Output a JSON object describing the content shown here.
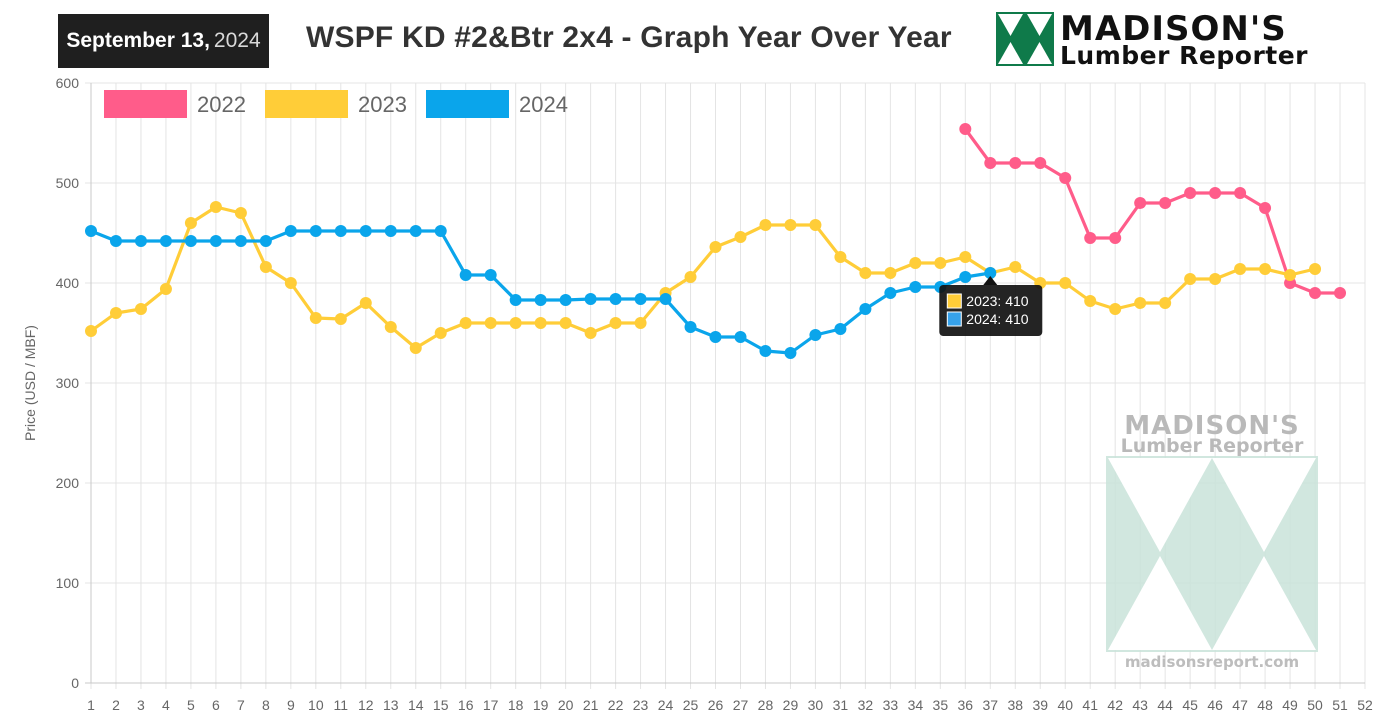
{
  "header": {
    "date_main": "September 13,",
    "date_year": "2024",
    "title": "WSPF KD #2&Btr 2x4 - Graph Year Over Year",
    "logo_line1": "MADISON'S",
    "logo_line2": "Lumber Reporter"
  },
  "watermark": {
    "line1": "MADISON'S",
    "line2": "Lumber Reporter",
    "url": "madisonsreport.com"
  },
  "tooltip": {
    "x": 37,
    "items": [
      {
        "label": "2023: 410",
        "color": "#ffcd38"
      },
      {
        "label": "2024: 410",
        "color": "#36a2eb"
      }
    ]
  },
  "chart_data": {
    "type": "line",
    "title": "",
    "xlabel": "",
    "ylabel": "Price (USD / MBF)",
    "x": [
      1,
      2,
      3,
      4,
      5,
      6,
      7,
      8,
      9,
      10,
      11,
      12,
      13,
      14,
      15,
      16,
      17,
      18,
      19,
      20,
      21,
      22,
      23,
      24,
      25,
      26,
      27,
      28,
      29,
      30,
      31,
      32,
      33,
      34,
      35,
      36,
      37,
      38,
      39,
      40,
      41,
      42,
      43,
      44,
      45,
      46,
      47,
      48,
      49,
      50,
      51,
      52
    ],
    "ylim": [
      0,
      600
    ],
    "yticks": [
      0,
      100,
      200,
      300,
      400,
      500,
      600
    ],
    "grid": true,
    "legend_position": "top-left",
    "series": [
      {
        "name": "2022",
        "color": "#ff5c8a",
        "points": [
          [
            36,
            554
          ],
          [
            37,
            520
          ],
          [
            38,
            520
          ],
          [
            39,
            520
          ],
          [
            40,
            505
          ],
          [
            41,
            445
          ],
          [
            42,
            445
          ],
          [
            43,
            480
          ],
          [
            44,
            480
          ],
          [
            45,
            490
          ],
          [
            46,
            490
          ],
          [
            47,
            490
          ],
          [
            48,
            475
          ],
          [
            49,
            400
          ],
          [
            50,
            390
          ],
          [
            51,
            390
          ]
        ]
      },
      {
        "name": "2023",
        "color": "#ffcd38",
        "points": [
          [
            1,
            352
          ],
          [
            2,
            370
          ],
          [
            3,
            374
          ],
          [
            4,
            394
          ],
          [
            5,
            460
          ],
          [
            6,
            476
          ],
          [
            7,
            470
          ],
          [
            8,
            416
          ],
          [
            9,
            400
          ],
          [
            10,
            365
          ],
          [
            11,
            364
          ],
          [
            12,
            380
          ],
          [
            13,
            356
          ],
          [
            14,
            335
          ],
          [
            15,
            350
          ],
          [
            16,
            360
          ],
          [
            17,
            360
          ],
          [
            18,
            360
          ],
          [
            19,
            360
          ],
          [
            20,
            360
          ],
          [
            21,
            350
          ],
          [
            22,
            360
          ],
          [
            23,
            360
          ],
          [
            24,
            390
          ],
          [
            25,
            406
          ],
          [
            26,
            436
          ],
          [
            27,
            446
          ],
          [
            28,
            458
          ],
          [
            29,
            458
          ],
          [
            30,
            458
          ],
          [
            31,
            426
          ],
          [
            32,
            410
          ],
          [
            33,
            410
          ],
          [
            34,
            420
          ],
          [
            35,
            420
          ],
          [
            36,
            426
          ],
          [
            37,
            410
          ],
          [
            38,
            416
          ],
          [
            39,
            400
          ],
          [
            40,
            400
          ],
          [
            41,
            382
          ],
          [
            42,
            374
          ],
          [
            43,
            380
          ],
          [
            44,
            380
          ],
          [
            45,
            404
          ],
          [
            46,
            404
          ],
          [
            47,
            414
          ],
          [
            48,
            414
          ],
          [
            49,
            408
          ],
          [
            50,
            414
          ]
        ]
      },
      {
        "name": "2024",
        "color": "#0aa5eb",
        "points": [
          [
            1,
            452
          ],
          [
            2,
            442
          ],
          [
            3,
            442
          ],
          [
            4,
            442
          ],
          [
            5,
            442
          ],
          [
            6,
            442
          ],
          [
            7,
            442
          ],
          [
            8,
            442
          ],
          [
            9,
            452
          ],
          [
            10,
            452
          ],
          [
            11,
            452
          ],
          [
            12,
            452
          ],
          [
            13,
            452
          ],
          [
            14,
            452
          ],
          [
            15,
            452
          ],
          [
            16,
            408
          ],
          [
            17,
            408
          ],
          [
            18,
            383
          ],
          [
            19,
            383
          ],
          [
            20,
            383
          ],
          [
            21,
            384
          ],
          [
            22,
            384
          ],
          [
            23,
            384
          ],
          [
            24,
            384
          ],
          [
            25,
            356
          ],
          [
            26,
            346
          ],
          [
            27,
            346
          ],
          [
            28,
            332
          ],
          [
            29,
            330
          ],
          [
            30,
            348
          ],
          [
            31,
            354
          ],
          [
            32,
            374
          ],
          [
            33,
            390
          ],
          [
            34,
            396
          ],
          [
            35,
            396
          ],
          [
            36,
            406
          ],
          [
            37,
            410
          ]
        ]
      }
    ]
  }
}
